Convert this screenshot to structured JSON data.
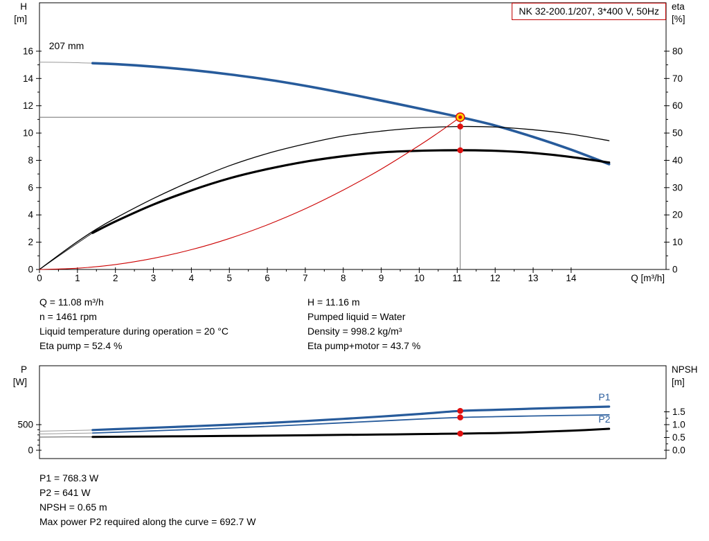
{
  "title_box": {
    "label": "NK 32-200.1/207, 3*400 V, 50Hz"
  },
  "colors": {
    "curve_blue": "#275b9b",
    "curve_red": "#cc0000",
    "marker_red": "#e01010",
    "duty_yellow": "#ffd800",
    "ref_gray": "#707070",
    "title_border": "#c00000"
  },
  "info_top": {
    "left": [
      "Q = 11.08 m³/h",
      "n = 1461 rpm",
      "Liquid temperature during operation = 20 °C",
      "Eta pump = 52.4 %"
    ],
    "right": [
      "H = 11.16 m",
      "Pumped liquid = Water",
      "Density = 998.2 kg/m³",
      "Eta pump+motor = 43.7 %"
    ]
  },
  "info_bottom": [
    "P1 = 768.3 W",
    "P2 = 641 W",
    "NPSH = 0.65 m",
    "Max power P2 required along the curve = 692.7 W"
  ],
  "chart_data": [
    {
      "type": "line",
      "name": "performance",
      "title": "NK 32-200.1/207, 3*400 V, 50Hz",
      "x": {
        "label": "Q [m³/h]",
        "min": 0,
        "max": 16.5,
        "major_ticks": [
          0,
          1,
          2,
          3,
          4,
          5,
          6,
          7,
          8,
          9,
          10,
          11,
          12,
          13,
          14
        ],
        "minor_ticks": [
          0.5,
          1.5,
          2.5,
          3.5,
          4.5,
          5.5,
          6.5,
          7.5,
          8.5,
          9.5,
          10.5,
          11.5,
          12.5,
          13.5
        ]
      },
      "y_left": {
        "label_lines": [
          "H",
          "[m]"
        ],
        "min": 0,
        "max": 19.55,
        "major_ticks": [
          0,
          2,
          4,
          6,
          8,
          10,
          12,
          14,
          16
        ],
        "minor_ticks": [
          1,
          3,
          5,
          7,
          9,
          11,
          13,
          15
        ]
      },
      "y_right": {
        "label_lines": [
          "eta",
          "[%]"
        ],
        "left_per_right": 0.2,
        "major_ticks": [
          0,
          10,
          20,
          30,
          40,
          50,
          60,
          70,
          80
        ],
        "minor_ticks": [
          5,
          15,
          25,
          35,
          45,
          55,
          65,
          75
        ]
      },
      "duty_point": {
        "Q": 11.08,
        "H": 11.16
      },
      "series": [
        {
          "id": "h-curve-lead",
          "axis": "left",
          "color": "#999999",
          "width": 1,
          "points": [
            [
              0,
              15.2
            ],
            [
              0.7,
              15.18
            ],
            [
              1.4,
              15.12
            ]
          ]
        },
        {
          "id": "h-curve",
          "axis": "left",
          "color": "#275b9b",
          "width": 3.6,
          "points": [
            [
              1.4,
              15.12
            ],
            [
              2,
              15.05
            ],
            [
              3,
              14.87
            ],
            [
              4,
              14.62
            ],
            [
              5,
              14.3
            ],
            [
              6,
              13.92
            ],
            [
              7,
              13.46
            ],
            [
              8,
              12.94
            ],
            [
              9,
              12.38
            ],
            [
              10,
              11.8
            ],
            [
              11.08,
              11.16
            ],
            [
              12,
              10.55
            ],
            [
              13,
              9.72
            ],
            [
              14,
              8.78
            ],
            [
              15,
              7.72
            ]
          ]
        },
        {
          "id": "eta-pump-curve",
          "axis": "right",
          "color": "#000000",
          "width": 1.3,
          "points": [
            [
              0,
              0
            ],
            [
              0.5,
              5.2
            ],
            [
              1,
              10.2
            ],
            [
              1.5,
              14.8
            ],
            [
              2,
              18.8
            ],
            [
              3,
              26
            ],
            [
              4,
              32.4
            ],
            [
              5,
              38
            ],
            [
              6,
              42.5
            ],
            [
              7,
              46
            ],
            [
              8,
              48.9
            ],
            [
              9,
              50.7
            ],
            [
              10,
              51.9
            ],
            [
              11.08,
              52.4
            ],
            [
              12,
              52.2
            ],
            [
              13,
              51.2
            ],
            [
              14,
              49.6
            ],
            [
              15,
              47.2
            ]
          ]
        },
        {
          "id": "eta-pump-motor-lead",
          "axis": "right",
          "color": "#000000",
          "width": 0.9,
          "points": [
            [
              0,
              0
            ],
            [
              0.7,
              6.8
            ],
            [
              1.4,
              13.4
            ]
          ]
        },
        {
          "id": "eta-pump-motor-curve",
          "axis": "right",
          "color": "#000000",
          "width": 3.2,
          "points": [
            [
              1.4,
              13.4
            ],
            [
              2,
              17.6
            ],
            [
              3,
              23.8
            ],
            [
              4,
              29
            ],
            [
              5,
              33.4
            ],
            [
              6,
              36.8
            ],
            [
              7,
              39.5
            ],
            [
              8,
              41.5
            ],
            [
              9,
              42.9
            ],
            [
              10,
              43.5
            ],
            [
              11.08,
              43.7
            ],
            [
              12,
              43.5
            ],
            [
              13,
              42.7
            ],
            [
              14,
              41.2
            ],
            [
              15,
              39.2
            ]
          ]
        },
        {
          "id": "system-curve",
          "axis": "left",
          "color": "#cc0000",
          "width": 1.1,
          "points": [
            [
              0,
              0
            ],
            [
              1,
              0.09
            ],
            [
              2,
              0.36
            ],
            [
              3,
              0.82
            ],
            [
              4,
              1.45
            ],
            [
              5,
              2.27
            ],
            [
              6,
              3.27
            ],
            [
              7,
              4.45
            ],
            [
              8,
              5.82
            ],
            [
              9,
              7.36
            ],
            [
              10,
              9.09
            ],
            [
              10.5,
              10.02
            ],
            [
              11.08,
              11.16
            ]
          ]
        }
      ],
      "ref_lines": [
        {
          "id": "duty-head-line",
          "color": "#707070",
          "width": 1,
          "from": [
            0,
            11.16
          ],
          "to": [
            11.08,
            11.16
          ]
        },
        {
          "id": "duty-flow-line",
          "color": "#707070",
          "width": 1,
          "from": [
            11.08,
            0
          ],
          "to": [
            11.08,
            11.16
          ]
        }
      ],
      "markers": [
        {
          "id": "duty-point-marker",
          "style": "duty",
          "axis": "left",
          "q": 11.08,
          "value": 11.16
        },
        {
          "id": "eta-pump-marker",
          "style": "dot",
          "axis": "right",
          "q": 11.08,
          "value": 52.4
        },
        {
          "id": "eta-pump-motor-marker",
          "style": "dot",
          "axis": "right",
          "q": 11.08,
          "value": 43.7
        }
      ],
      "annotations": [
        {
          "id": "impeller-size-label",
          "text": "207 mm",
          "q": 0.25,
          "value": 16.15,
          "axis": "left",
          "color": "#000000"
        }
      ]
    },
    {
      "type": "line",
      "name": "power-npsh",
      "x": {
        "min": 0,
        "max": 16.5
      },
      "y_left": {
        "label_lines": [
          "P",
          "[W]"
        ],
        "min": -162,
        "max": 1649,
        "major_ticks": [
          0,
          500
        ],
        "labels": [
          "0",
          "500"
        ],
        "minor_ticks": [
          100,
          200,
          300,
          400
        ]
      },
      "y_right": {
        "label_lines": [
          "NPSH",
          "[m]"
        ],
        "left_per_right": 500,
        "major_ticks": [
          0,
          0.5,
          1,
          1.5
        ],
        "labels": [
          "0.0",
          "0.5",
          "1.0",
          "1.5"
        ],
        "minor_ticks": [
          0.25,
          0.75,
          1.25
        ]
      },
      "series": [
        {
          "id": "p1-curve-lead",
          "axis": "left",
          "color": "#999999",
          "width": 1,
          "points": [
            [
              0,
              372
            ],
            [
              0.7,
              382
            ],
            [
              1.4,
              395
            ]
          ]
        },
        {
          "id": "p1-curve",
          "axis": "left",
          "color": "#275b9b",
          "width": 3.2,
          "points": [
            [
              1.4,
              395
            ],
            [
              2,
              412
            ],
            [
              3,
              440
            ],
            [
              4,
              468
            ],
            [
              5,
              499
            ],
            [
              6,
              533
            ],
            [
              7,
              571
            ],
            [
              8,
              613
            ],
            [
              9,
              659
            ],
            [
              10,
              708
            ],
            [
              11.08,
              768.3
            ],
            [
              12,
              789
            ],
            [
              13,
              812
            ],
            [
              14,
              833
            ],
            [
              15,
              852
            ]
          ]
        },
        {
          "id": "p2-curve-lead",
          "axis": "left",
          "color": "#999999",
          "width": 1,
          "points": [
            [
              0,
              318
            ],
            [
              0.7,
              327
            ],
            [
              1.4,
              337
            ]
          ]
        },
        {
          "id": "p2-curve",
          "axis": "left",
          "color": "#275b9b",
          "width": 1.8,
          "points": [
            [
              1.4,
              337
            ],
            [
              2,
              352
            ],
            [
              3,
              378
            ],
            [
              4,
              405
            ],
            [
              5,
              434
            ],
            [
              6,
              466
            ],
            [
              7,
              500
            ],
            [
              8,
              537
            ],
            [
              9,
              572
            ],
            [
              10,
              608
            ],
            [
              11.08,
              641
            ],
            [
              12,
              655
            ],
            [
              13,
              669
            ],
            [
              14,
              681
            ],
            [
              15,
              691
            ]
          ]
        },
        {
          "id": "npsh-curve-lead",
          "axis": "right",
          "color": "#555555",
          "width": 1,
          "points": [
            [
              0,
              0.515
            ],
            [
              0.7,
              0.518
            ],
            [
              1.4,
              0.522
            ]
          ]
        },
        {
          "id": "npsh-curve",
          "axis": "right",
          "color": "#000000",
          "width": 3,
          "points": [
            [
              1.4,
              0.522
            ],
            [
              2,
              0.527
            ],
            [
              3,
              0.537
            ],
            [
              4,
              0.549
            ],
            [
              5,
              0.56
            ],
            [
              6,
              0.572
            ],
            [
              7,
              0.585
            ],
            [
              8,
              0.6
            ],
            [
              9,
              0.615
            ],
            [
              10,
              0.632
            ],
            [
              11.08,
              0.65
            ],
            [
              12,
              0.671
            ],
            [
              13,
              0.708
            ],
            [
              14,
              0.762
            ],
            [
              15,
              0.838
            ]
          ]
        }
      ],
      "markers": [
        {
          "id": "p1-marker",
          "style": "dot",
          "axis": "left",
          "q": 11.08,
          "value": 768.3
        },
        {
          "id": "p2-marker",
          "style": "dot",
          "axis": "left",
          "q": 11.08,
          "value": 641
        },
        {
          "id": "npsh-marker",
          "style": "dot",
          "axis": "right",
          "q": 11.08,
          "value": 0.65
        }
      ],
      "annotations": [
        {
          "id": "p1-curve-label",
          "text": "P1",
          "q": 14.72,
          "value": 975,
          "axis": "left",
          "color": "#275b9b"
        },
        {
          "id": "p2-curve-label",
          "text": "P2",
          "q": 14.72,
          "value": 540,
          "axis": "left",
          "color": "#275b9b"
        }
      ]
    }
  ]
}
